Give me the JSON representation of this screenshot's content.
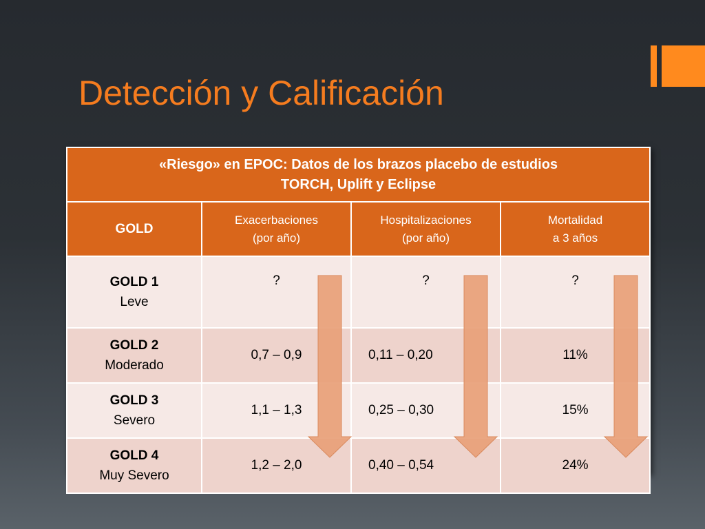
{
  "slide": {
    "title": "Detección y Calificación"
  },
  "table": {
    "caption_line1": "«Riesgo» en EPOC: Datos de los brazos placebo de estudios",
    "caption_line2": "TORCH, Uplift  y Eclipse",
    "headers": {
      "gold": "GOLD",
      "exacerbaciones_l1": "Exacerbaciones",
      "exacerbaciones_l2": "(por año)",
      "hospitalizaciones_l1": "Hospitalizaciones",
      "hospitalizaciones_l2": "(por año)",
      "mortalidad_l1": "Mortalidad",
      "mortalidad_l2": "a 3 años"
    },
    "rows": [
      {
        "grade": "GOLD 1",
        "desc": "Leve",
        "exac": "?",
        "hosp": "?",
        "mort": "?"
      },
      {
        "grade": "GOLD 2",
        "desc": "Moderado",
        "exac": "0,7 – 0,9",
        "hosp": "0,11 – 0,20",
        "mort": "11%"
      },
      {
        "grade": "GOLD 3",
        "desc": "Severo",
        "exac": "1,1 – 1,3",
        "hosp": "0,25 – 0,30",
        "mort": "15%"
      },
      {
        "grade": "GOLD 4",
        "desc": "Muy Severo",
        "exac": "1,2 – 2,0",
        "hosp": "0,40 – 0,54",
        "mort": "24%"
      }
    ]
  },
  "colors": {
    "accent": "#f57c1f",
    "header_bg": "#d9661b",
    "row_light": "#f6e9e6",
    "row_dark": "#eed3cc",
    "arrow": "#e8a078"
  },
  "icons": {
    "logo": "orange-bars-logo",
    "arrows": "down-arrow-icon"
  }
}
